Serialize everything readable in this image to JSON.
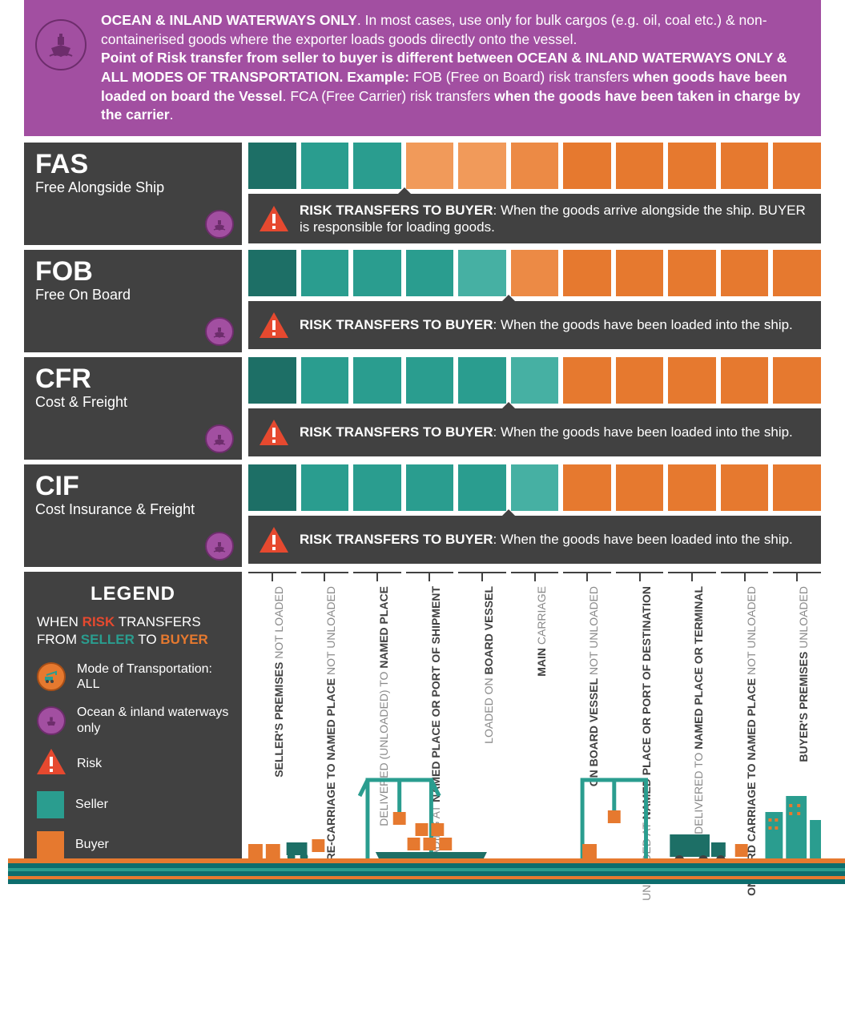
{
  "colors": {
    "banner_bg": "#a24fa1",
    "banner_border": "#6d2d6c",
    "panel_bg": "#414141",
    "seller": "#2a9d8f",
    "seller_dark": "#1d6f66",
    "seller_mid": "#46b0a3",
    "buyer": "#e6792f",
    "buyer_light": "#f19a5a",
    "buyer_mid": "#ec8a45",
    "risk_red": "#e6492f",
    "text_white": "#ffffff",
    "text_dark": "#414141",
    "text_muted": "#8a8a8a",
    "mode_all_bg": "#e6792f"
  },
  "header": {
    "line1_bold": "OCEAN & INLAND WATERWAYS ONLY",
    "line1_rest": ". In most cases, use only for bulk cargos (e.g. oil, coal etc.) & non-containerised goods where the exporter loads goods directly onto the vessel.",
    "line2_bold_a": "Point of Risk transfer from seller to buyer is different between OCEAN & INLAND WATERWAYS ONLY & ALL MODES OF TRANSPORTATION.  Example:",
    "line2_mid": " FOB (Free on Board) risk transfers ",
    "line2_bold_b": "when goods have been loaded on board the Vessel",
    "line2_mid2": ". FCA (Free Carrier) risk transfers ",
    "line2_bold_c": "when the goods have been taken in charge by the carrier",
    "line2_end": "."
  },
  "stage_count": 11,
  "terms": [
    {
      "code": "FAS",
      "name": "Free Alongside Ship",
      "risk_prefix": "RISK TRANSFERS TO BUYER",
      "risk_text": ": When the goods arrive alongside the ship. BUYER is responsible for loading goods.",
      "split_after": 3,
      "block_colors": [
        "#1d6f66",
        "#2a9d8f",
        "#2a9d8f",
        "#f19a5a",
        "#f19a5a",
        "#ec8a45",
        "#e6792f",
        "#e6792f",
        "#e6792f",
        "#e6792f",
        "#e6792f"
      ]
    },
    {
      "code": "FOB",
      "name": "Free On Board",
      "risk_prefix": "RISK TRANSFERS TO BUYER",
      "risk_text": ": When the goods have been loaded into the ship.",
      "split_after": 5,
      "block_colors": [
        "#1d6f66",
        "#2a9d8f",
        "#2a9d8f",
        "#2a9d8f",
        "#46b0a3",
        "#ec8a45",
        "#e6792f",
        "#e6792f",
        "#e6792f",
        "#e6792f",
        "#e6792f"
      ]
    },
    {
      "code": "CFR",
      "name": "Cost & Freight",
      "risk_prefix": "RISK TRANSFERS TO BUYER",
      "risk_text": ": When the goods have been loaded into the ship.",
      "split_after": 5,
      "block_colors": [
        "#1d6f66",
        "#2a9d8f",
        "#2a9d8f",
        "#2a9d8f",
        "#2a9d8f",
        "#46b0a3",
        "#e6792f",
        "#e6792f",
        "#e6792f",
        "#e6792f",
        "#e6792f"
      ]
    },
    {
      "code": "CIF",
      "name": "Cost Insurance & Freight",
      "risk_prefix": "RISK TRANSFERS TO BUYER",
      "risk_text": ": When the goods have been loaded into the ship.",
      "split_after": 5,
      "block_colors": [
        "#1d6f66",
        "#2a9d8f",
        "#2a9d8f",
        "#2a9d8f",
        "#2a9d8f",
        "#46b0a3",
        "#e6792f",
        "#e6792f",
        "#e6792f",
        "#e6792f",
        "#e6792f"
      ]
    }
  ],
  "legend": {
    "title": "LEGEND",
    "subtitle_pre": "WHEN ",
    "subtitle_risk": "RISK",
    "subtitle_mid": " TRANSFERS FROM ",
    "subtitle_seller": "SELLER",
    "subtitle_to": " TO ",
    "subtitle_buyer": "BUYER",
    "items": {
      "mode_all": "Mode of Transportation: ALL",
      "ocean": "Ocean & inland waterways only",
      "risk": "Risk",
      "seller": "Seller",
      "buyer": "Buyer"
    }
  },
  "stages": [
    {
      "bold": "SELLER'S PREMISES",
      "sub": "NOT LOADED"
    },
    {
      "bold": "PRE-CARRIAGE TO NAMED PLACE",
      "sub": "NOT UNLOADED"
    },
    {
      "pre": "DELIVERED (UNLOADED) TO ",
      "bold": "NAMED PLACE",
      "sub": ""
    },
    {
      "pre": "LOADING AT ",
      "bold": "NAMED PLACE OR PORT OF SHIPMENT",
      "sub": ""
    },
    {
      "pre": "LOADED ON ",
      "bold": "BOARD VESSEL",
      "sub": ""
    },
    {
      "bold": "MAIN",
      "sub": "CARRIAGE"
    },
    {
      "bold": "ON BOARD VESSEL",
      "sub": "NOT UNLOADED"
    },
    {
      "pre": "UNLOADED AT ",
      "bold": "NAMED PLACE OR PORT OF DESTINATION",
      "sub": ""
    },
    {
      "pre": "DELIVERED TO ",
      "bold": "NAMED PLACE OR TERMINAL",
      "sub": ""
    },
    {
      "bold": "ONWARD CARRIAGE TO NAMED PLACE",
      "sub": "NOT UNLOADED"
    },
    {
      "bold": "BUYER'S PREMISES",
      "sub": "UNLOADED"
    }
  ]
}
